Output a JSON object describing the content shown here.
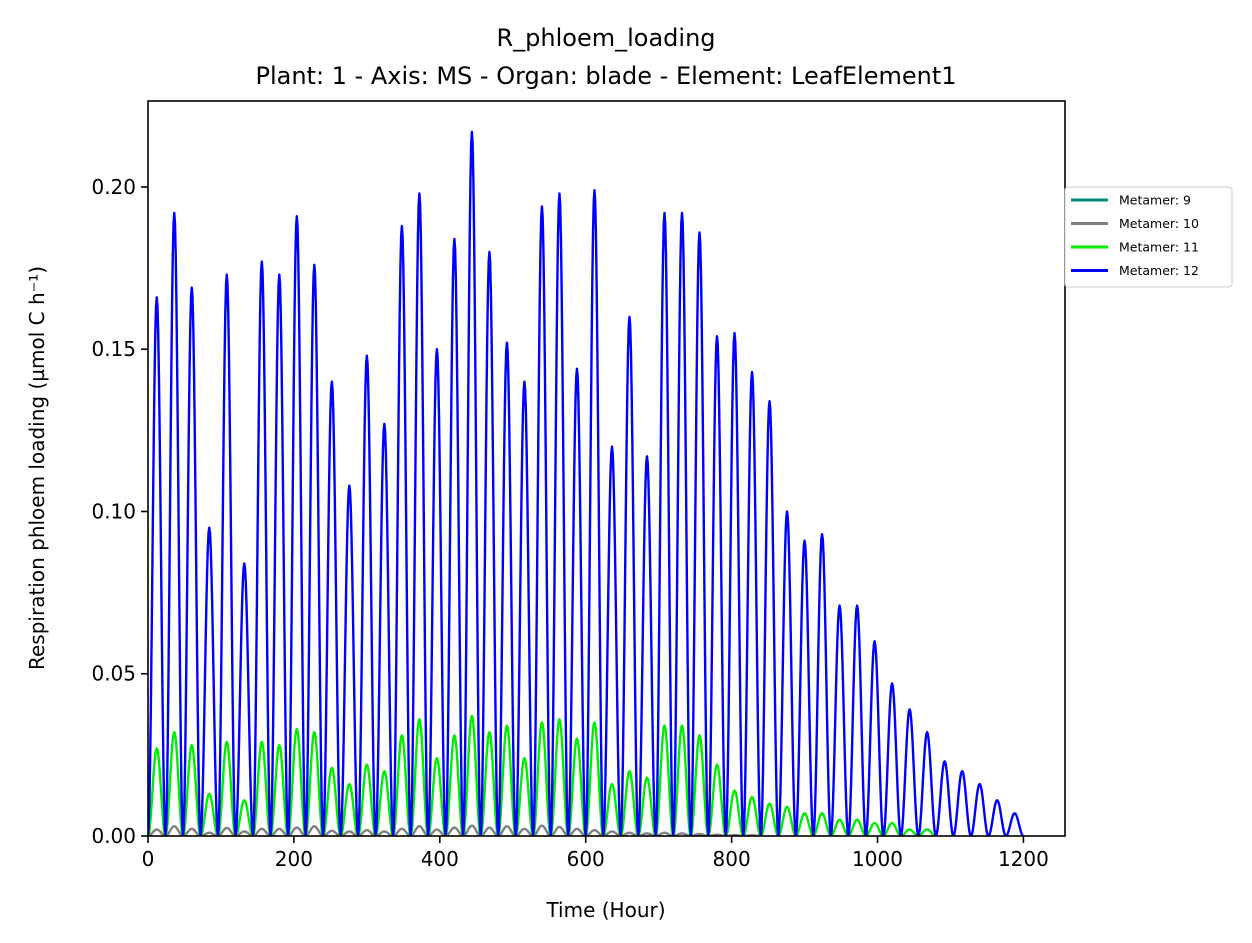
{
  "chart_data": {
    "type": "line",
    "title": "R_phloem_loading",
    "subtitle": "Plant: 1 - Axis: MS - Organ: blade - Element: LeafElement1",
    "xlabel": "Time (Hour)",
    "ylabel": "Respiration phloem loading (µmol C h⁻¹)",
    "xlim": [
      0,
      1257
    ],
    "ylim": [
      0,
      0.2265
    ],
    "xticks": [
      "0",
      "200",
      "400",
      "600",
      "800",
      "1000",
      "1200"
    ],
    "xtick_values": [
      0,
      200,
      400,
      600,
      800,
      1000,
      1200
    ],
    "yticks": [
      "0.00",
      "0.05",
      "0.10",
      "0.15",
      "0.20"
    ],
    "ytick_values": [
      0,
      0.05,
      0.1,
      0.15,
      0.2
    ],
    "grid": false,
    "legend_position": "right, outside plot",
    "cycle_period_hours": 24,
    "series": [
      {
        "name": "Metamer: 9",
        "color": "#008b7a",
        "values": []
      },
      {
        "name": "Metamer: 10",
        "color": "#808080",
        "peaks": [
          {
            "x": 12,
            "y": 0.002
          },
          {
            "x": 36,
            "y": 0.003
          },
          {
            "x": 60,
            "y": 0.0022
          },
          {
            "x": 84,
            "y": 0.001
          },
          {
            "x": 108,
            "y": 0.0025
          },
          {
            "x": 132,
            "y": 0.0014
          },
          {
            "x": 156,
            "y": 0.0022
          },
          {
            "x": 180,
            "y": 0.0022
          },
          {
            "x": 204,
            "y": 0.0026
          },
          {
            "x": 228,
            "y": 0.003
          },
          {
            "x": 252,
            "y": 0.0016
          },
          {
            "x": 276,
            "y": 0.0014
          },
          {
            "x": 300,
            "y": 0.0018
          },
          {
            "x": 324,
            "y": 0.0014
          },
          {
            "x": 348,
            "y": 0.0022
          },
          {
            "x": 372,
            "y": 0.003
          },
          {
            "x": 396,
            "y": 0.002
          },
          {
            "x": 420,
            "y": 0.0026
          },
          {
            "x": 444,
            "y": 0.0032
          },
          {
            "x": 468,
            "y": 0.0026
          },
          {
            "x": 492,
            "y": 0.003
          },
          {
            "x": 516,
            "y": 0.0022
          },
          {
            "x": 540,
            "y": 0.0032
          },
          {
            "x": 564,
            "y": 0.0028
          },
          {
            "x": 588,
            "y": 0.0022
          },
          {
            "x": 612,
            "y": 0.0018
          },
          {
            "x": 636,
            "y": 0.0014
          },
          {
            "x": 660,
            "y": 0.001
          },
          {
            "x": 684,
            "y": 0.0008
          },
          {
            "x": 708,
            "y": 0.001
          },
          {
            "x": 732,
            "y": 0.0008
          },
          {
            "x": 756,
            "y": 0.0006
          },
          {
            "x": 780,
            "y": 0.0004
          },
          {
            "x": 804,
            "y": 0.0003
          },
          {
            "x": 828,
            "y": 0.0002
          }
        ]
      },
      {
        "name": "Metamer: 11",
        "color": "#00ee00",
        "peaks": [
          {
            "x": 12,
            "y": 0.027
          },
          {
            "x": 36,
            "y": 0.032
          },
          {
            "x": 60,
            "y": 0.028
          },
          {
            "x": 84,
            "y": 0.013
          },
          {
            "x": 108,
            "y": 0.029
          },
          {
            "x": 132,
            "y": 0.011
          },
          {
            "x": 156,
            "y": 0.029
          },
          {
            "x": 180,
            "y": 0.028
          },
          {
            "x": 204,
            "y": 0.033
          },
          {
            "x": 228,
            "y": 0.032
          },
          {
            "x": 252,
            "y": 0.021
          },
          {
            "x": 276,
            "y": 0.016
          },
          {
            "x": 300,
            "y": 0.022
          },
          {
            "x": 324,
            "y": 0.02
          },
          {
            "x": 348,
            "y": 0.031
          },
          {
            "x": 372,
            "y": 0.036
          },
          {
            "x": 396,
            "y": 0.024
          },
          {
            "x": 420,
            "y": 0.031
          },
          {
            "x": 444,
            "y": 0.037
          },
          {
            "x": 468,
            "y": 0.032
          },
          {
            "x": 492,
            "y": 0.034
          },
          {
            "x": 516,
            "y": 0.024
          },
          {
            "x": 540,
            "y": 0.035
          },
          {
            "x": 564,
            "y": 0.036
          },
          {
            "x": 588,
            "y": 0.03
          },
          {
            "x": 612,
            "y": 0.035
          },
          {
            "x": 636,
            "y": 0.016
          },
          {
            "x": 660,
            "y": 0.02
          },
          {
            "x": 684,
            "y": 0.018
          },
          {
            "x": 708,
            "y": 0.034
          },
          {
            "x": 732,
            "y": 0.034
          },
          {
            "x": 756,
            "y": 0.031
          },
          {
            "x": 780,
            "y": 0.022
          },
          {
            "x": 804,
            "y": 0.014
          },
          {
            "x": 828,
            "y": 0.012
          },
          {
            "x": 852,
            "y": 0.01
          },
          {
            "x": 876,
            "y": 0.009
          },
          {
            "x": 900,
            "y": 0.007
          },
          {
            "x": 924,
            "y": 0.007
          },
          {
            "x": 948,
            "y": 0.005
          },
          {
            "x": 972,
            "y": 0.005
          },
          {
            "x": 996,
            "y": 0.004
          },
          {
            "x": 1020,
            "y": 0.004
          },
          {
            "x": 1044,
            "y": 0.002
          },
          {
            "x": 1068,
            "y": 0.002
          }
        ]
      },
      {
        "name": "Metamer: 12",
        "color": "#0000ff",
        "peaks": [
          {
            "x": 12,
            "y": 0.166
          },
          {
            "x": 36,
            "y": 0.192
          },
          {
            "x": 60,
            "y": 0.169
          },
          {
            "x": 84,
            "y": 0.095
          },
          {
            "x": 108,
            "y": 0.173
          },
          {
            "x": 132,
            "y": 0.084
          },
          {
            "x": 156,
            "y": 0.177
          },
          {
            "x": 180,
            "y": 0.173
          },
          {
            "x": 204,
            "y": 0.191
          },
          {
            "x": 228,
            "y": 0.176
          },
          {
            "x": 252,
            "y": 0.14
          },
          {
            "x": 276,
            "y": 0.108
          },
          {
            "x": 300,
            "y": 0.148
          },
          {
            "x": 324,
            "y": 0.127
          },
          {
            "x": 348,
            "y": 0.188
          },
          {
            "x": 372,
            "y": 0.198
          },
          {
            "x": 396,
            "y": 0.15
          },
          {
            "x": 420,
            "y": 0.184
          },
          {
            "x": 444,
            "y": 0.217
          },
          {
            "x": 468,
            "y": 0.18
          },
          {
            "x": 492,
            "y": 0.152
          },
          {
            "x": 516,
            "y": 0.14
          },
          {
            "x": 540,
            "y": 0.194
          },
          {
            "x": 564,
            "y": 0.198
          },
          {
            "x": 588,
            "y": 0.144
          },
          {
            "x": 612,
            "y": 0.199
          },
          {
            "x": 636,
            "y": 0.12
          },
          {
            "x": 660,
            "y": 0.16
          },
          {
            "x": 684,
            "y": 0.117
          },
          {
            "x": 708,
            "y": 0.192
          },
          {
            "x": 732,
            "y": 0.192
          },
          {
            "x": 756,
            "y": 0.186
          },
          {
            "x": 780,
            "y": 0.154
          },
          {
            "x": 804,
            "y": 0.155
          },
          {
            "x": 828,
            "y": 0.143
          },
          {
            "x": 852,
            "y": 0.134
          },
          {
            "x": 876,
            "y": 0.1
          },
          {
            "x": 900,
            "y": 0.091
          },
          {
            "x": 924,
            "y": 0.093
          },
          {
            "x": 948,
            "y": 0.071
          },
          {
            "x": 972,
            "y": 0.071
          },
          {
            "x": 996,
            "y": 0.06
          },
          {
            "x": 1020,
            "y": 0.047
          },
          {
            "x": 1044,
            "y": 0.039
          },
          {
            "x": 1068,
            "y": 0.032
          },
          {
            "x": 1092,
            "y": 0.023
          },
          {
            "x": 1116,
            "y": 0.02
          },
          {
            "x": 1140,
            "y": 0.016
          },
          {
            "x": 1164,
            "y": 0.011
          },
          {
            "x": 1188,
            "y": 0.007
          }
        ]
      }
    ]
  }
}
